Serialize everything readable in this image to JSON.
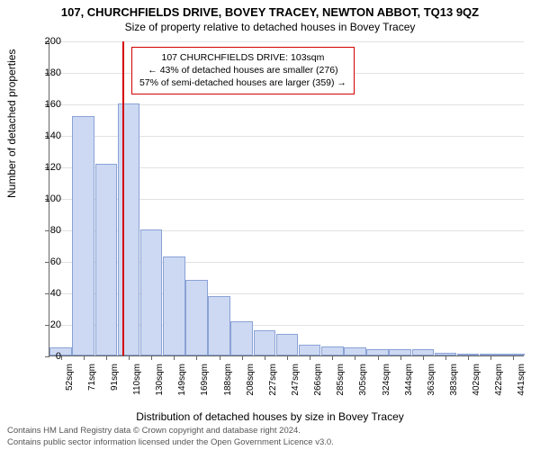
{
  "title": "107, CHURCHFIELDS DRIVE, BOVEY TRACEY, NEWTON ABBOT, TQ13 9QZ",
  "subtitle": "Size of property relative to detached houses in Bovey Tracey",
  "ylabel": "Number of detached properties",
  "xlabel": "Distribution of detached houses by size in Bovey Tracey",
  "chart": {
    "type": "histogram",
    "ylim": [
      0,
      200
    ],
    "ytick_step": 20,
    "grid_color": "#e2e2e2",
    "bar_fill": "#cdd9f2",
    "bar_stroke": "#8aa2d6",
    "background": "#ffffff",
    "categories": [
      "52sqm",
      "71sqm",
      "91sqm",
      "110sqm",
      "130sqm",
      "149sqm",
      "169sqm",
      "188sqm",
      "208sqm",
      "227sqm",
      "247sqm",
      "266sqm",
      "285sqm",
      "305sqm",
      "324sqm",
      "344sqm",
      "363sqm",
      "383sqm",
      "402sqm",
      "422sqm",
      "441sqm"
    ],
    "values": [
      5,
      152,
      122,
      160,
      80,
      63,
      48,
      38,
      22,
      16,
      14,
      7,
      6,
      5,
      4,
      4,
      4,
      2,
      0,
      1,
      1
    ],
    "reference_line": {
      "index": 2.72,
      "color": "#d40000"
    },
    "annotation": {
      "border_color": "#d40000",
      "lines": [
        "107 CHURCHFIELDS DRIVE: 103sqm",
        "← 43% of detached houses are smaller (276)",
        "57% of semi-detached houses are larger (359) →"
      ]
    }
  },
  "footer": {
    "line1": "Contains HM Land Registry data © Crown copyright and database right 2024.",
    "line2": "Contains public sector information licensed under the Open Government Licence v3.0."
  }
}
